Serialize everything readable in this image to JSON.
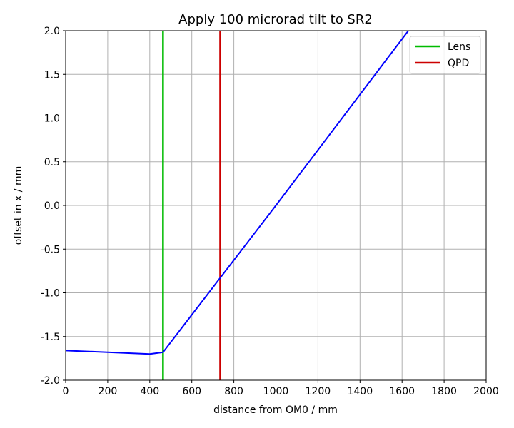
{
  "chart_data": {
    "type": "line",
    "title": "Apply 100 microrad tilt to SR2",
    "xlabel": "distance from OM0 / mm",
    "ylabel": "offset in x / mm",
    "xlim": [
      0,
      2000
    ],
    "ylim": [
      -2.0,
      2.0
    ],
    "xticks": [
      0,
      200,
      400,
      600,
      800,
      1000,
      1200,
      1400,
      1600,
      1800,
      2000
    ],
    "yticks": [
      -2.0,
      -1.5,
      -1.0,
      -0.5,
      0.0,
      0.5,
      1.0,
      1.5,
      2.0
    ],
    "grid": true,
    "legend_position": "top-right",
    "series": [
      {
        "color": "#0000ff",
        "x": [
          0,
          400,
          463,
          1000,
          1630
        ],
        "y": [
          -1.66,
          -1.7,
          -1.68,
          0.0,
          2.0
        ]
      }
    ],
    "vlines": [
      {
        "name": "Lens",
        "x": 463,
        "color": "#00bb00"
      },
      {
        "name": "QPD",
        "x": 735,
        "color": "#cc0000"
      }
    ]
  }
}
